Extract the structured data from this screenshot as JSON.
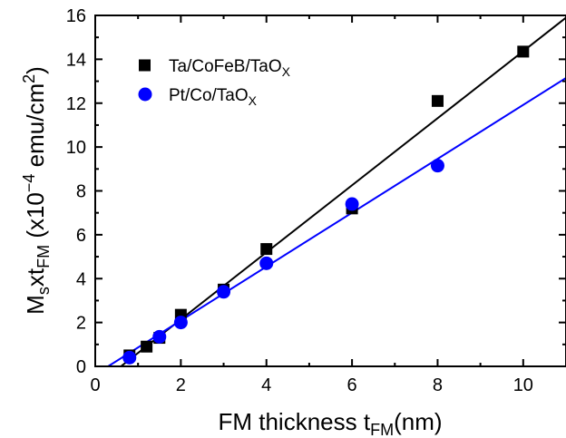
{
  "chart_data": {
    "type": "scatter",
    "xlabel": {
      "main": "FM thickness t",
      "sub": "FM",
      "unit": "(nm)"
    },
    "ylabel": {
      "m": "M",
      "s": "s",
      "x": "xt",
      "fm": "FM",
      "pre": " (x10",
      "exp": "−4",
      "mid": " emu/cm",
      "sq": "2",
      "post": ")"
    },
    "xlim": [
      0,
      11
    ],
    "ylim": [
      0,
      16
    ],
    "xticks": [
      0,
      2,
      4,
      6,
      8,
      10
    ],
    "yticks": [
      0,
      2,
      4,
      6,
      8,
      10,
      12,
      14,
      16
    ],
    "grid": false,
    "legend_position": "top-left",
    "series": [
      {
        "name": "Ta/CoFeB/TaO",
        "name_sub": "X",
        "marker": "square",
        "color": "#000000",
        "x": [
          0.8,
          1.2,
          1.5,
          2.0,
          3.0,
          4.0,
          6.0,
          8.0,
          10.0
        ],
        "y": [
          0.5,
          0.9,
          1.3,
          2.35,
          3.5,
          5.35,
          7.2,
          12.1,
          14.35
        ],
        "fit": {
          "x": [
            0.6,
            11.0
          ],
          "y": [
            0.0,
            15.9
          ]
        }
      },
      {
        "name": "Pt/Co/TaO",
        "name_sub": "X",
        "marker": "circle",
        "color": "#0000ff",
        "x": [
          0.8,
          1.5,
          2.0,
          3.0,
          4.0,
          6.0,
          8.0
        ],
        "y": [
          0.4,
          1.35,
          2.0,
          3.4,
          4.7,
          7.4,
          9.15
        ],
        "fit": {
          "x": [
            0.3,
            11.0
          ],
          "y": [
            0.0,
            13.15
          ]
        }
      }
    ]
  }
}
